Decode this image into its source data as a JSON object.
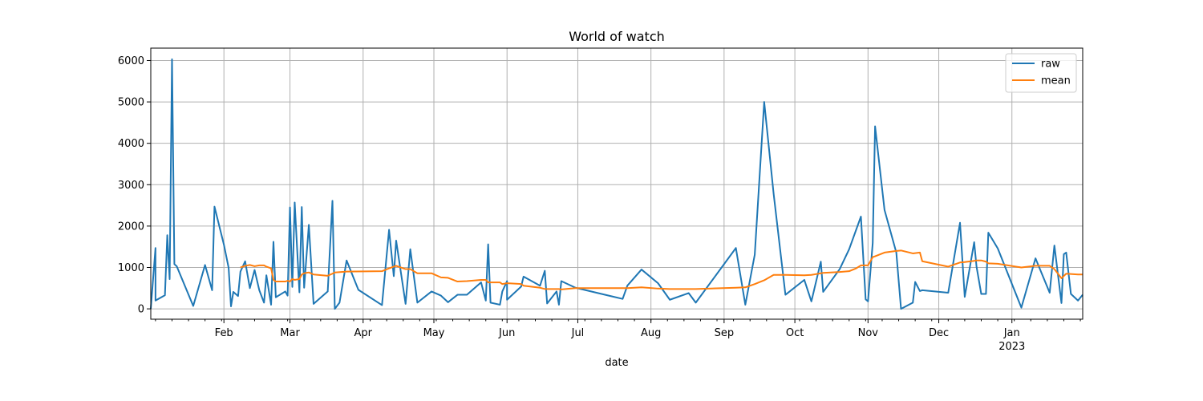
{
  "chart_data": {
    "type": "line",
    "title": "World of watch",
    "xlabel": "date",
    "ylabel": "",
    "x_type": "date",
    "xlim": [
      "2022-01-01",
      "2023-01-31"
    ],
    "ylim": [
      -250,
      6300
    ],
    "yticks": [
      0,
      1000,
      2000,
      3000,
      4000,
      5000,
      6000
    ],
    "xticks": [
      {
        "date": "2022-02-01",
        "label": "Feb",
        "sublabel": ""
      },
      {
        "date": "2022-03-01",
        "label": "Mar",
        "sublabel": ""
      },
      {
        "date": "2022-04-01",
        "label": "Apr",
        "sublabel": ""
      },
      {
        "date": "2022-05-01",
        "label": "May",
        "sublabel": ""
      },
      {
        "date": "2022-06-01",
        "label": "Jun",
        "sublabel": ""
      },
      {
        "date": "2022-07-01",
        "label": "Jul",
        "sublabel": ""
      },
      {
        "date": "2022-08-01",
        "label": "Aug",
        "sublabel": ""
      },
      {
        "date": "2022-09-01",
        "label": "Sep",
        "sublabel": ""
      },
      {
        "date": "2022-10-01",
        "label": "Oct",
        "sublabel": ""
      },
      {
        "date": "2022-11-01",
        "label": "Nov",
        "sublabel": ""
      },
      {
        "date": "2022-12-01",
        "label": "Dec",
        "sublabel": ""
      },
      {
        "date": "2023-01-01",
        "label": "Jan",
        "sublabel": "2023"
      }
    ],
    "grid": true,
    "legend_position": "top-right",
    "series": [
      {
        "name": "raw",
        "color": "#1f77b4",
        "points": [
          [
            "2022-01-01",
            0
          ],
          [
            "2022-01-03",
            1470
          ],
          [
            "2022-01-03",
            200
          ],
          [
            "2022-01-07",
            330
          ],
          [
            "2022-01-08",
            1780
          ],
          [
            "2022-01-09",
            720
          ],
          [
            "2022-01-10",
            6030
          ],
          [
            "2022-01-11",
            1080
          ],
          [
            "2022-01-12",
            1030
          ],
          [
            "2022-01-19",
            70
          ],
          [
            "2022-01-24",
            1060
          ],
          [
            "2022-01-27",
            450
          ],
          [
            "2022-01-28",
            2470
          ],
          [
            "2022-02-01",
            1550
          ],
          [
            "2022-02-03",
            990
          ],
          [
            "2022-02-04",
            60
          ],
          [
            "2022-02-05",
            410
          ],
          [
            "2022-02-07",
            310
          ],
          [
            "2022-02-08",
            900
          ],
          [
            "2022-02-10",
            1150
          ],
          [
            "2022-02-12",
            500
          ],
          [
            "2022-02-14",
            940
          ],
          [
            "2022-02-16",
            450
          ],
          [
            "2022-02-18",
            150
          ],
          [
            "2022-02-19",
            810
          ],
          [
            "2022-02-21",
            100
          ],
          [
            "2022-02-22",
            1620
          ],
          [
            "2022-02-23",
            280
          ],
          [
            "2022-02-27",
            420
          ],
          [
            "2022-02-28",
            320
          ],
          [
            "2022-03-01",
            2450
          ],
          [
            "2022-03-02",
            530
          ],
          [
            "2022-03-03",
            2570
          ],
          [
            "2022-03-05",
            400
          ],
          [
            "2022-03-06",
            2460
          ],
          [
            "2022-03-07",
            510
          ],
          [
            "2022-03-09",
            2030
          ],
          [
            "2022-03-11",
            120
          ],
          [
            "2022-03-17",
            420
          ],
          [
            "2022-03-19",
            2610
          ],
          [
            "2022-03-20",
            0
          ],
          [
            "2022-03-22",
            150
          ],
          [
            "2022-03-25",
            1170
          ],
          [
            "2022-03-30",
            460
          ],
          [
            "2022-04-09",
            90
          ],
          [
            "2022-04-12",
            1910
          ],
          [
            "2022-04-14",
            790
          ],
          [
            "2022-04-15",
            1650
          ],
          [
            "2022-04-19",
            120
          ],
          [
            "2022-04-21",
            1440
          ],
          [
            "2022-04-24",
            150
          ],
          [
            "2022-04-30",
            420
          ],
          [
            "2022-05-04",
            320
          ],
          [
            "2022-05-07",
            160
          ],
          [
            "2022-05-11",
            340
          ],
          [
            "2022-05-15",
            340
          ],
          [
            "2022-05-21",
            640
          ],
          [
            "2022-05-23",
            200
          ],
          [
            "2022-05-24",
            1560
          ],
          [
            "2022-05-25",
            150
          ],
          [
            "2022-05-29",
            100
          ],
          [
            "2022-05-30",
            420
          ],
          [
            "2022-06-01",
            670
          ],
          [
            "2022-06-01",
            220
          ],
          [
            "2022-06-07",
            540
          ],
          [
            "2022-06-08",
            780
          ],
          [
            "2022-06-15",
            560
          ],
          [
            "2022-06-17",
            920
          ],
          [
            "2022-06-18",
            130
          ],
          [
            "2022-06-22",
            420
          ],
          [
            "2022-06-23",
            100
          ],
          [
            "2022-06-24",
            670
          ],
          [
            "2022-06-30",
            510
          ],
          [
            "2022-07-20",
            240
          ],
          [
            "2022-07-22",
            560
          ],
          [
            "2022-07-28",
            950
          ],
          [
            "2022-08-04",
            620
          ],
          [
            "2022-08-09",
            220
          ],
          [
            "2022-08-17",
            380
          ],
          [
            "2022-08-20",
            150
          ],
          [
            "2022-09-06",
            1470
          ],
          [
            "2022-09-10",
            100
          ],
          [
            "2022-09-14",
            1310
          ],
          [
            "2022-09-18",
            5000
          ],
          [
            "2022-09-22",
            2780
          ],
          [
            "2022-09-27",
            340
          ],
          [
            "2022-10-05",
            700
          ],
          [
            "2022-10-08",
            180
          ],
          [
            "2022-10-12",
            1140
          ],
          [
            "2022-10-13",
            410
          ],
          [
            "2022-10-20",
            960
          ],
          [
            "2022-10-24",
            1440
          ],
          [
            "2022-10-29",
            2230
          ],
          [
            "2022-10-31",
            230
          ],
          [
            "2022-11-01",
            180
          ],
          [
            "2022-11-03",
            1590
          ],
          [
            "2022-11-04",
            4410
          ],
          [
            "2022-11-08",
            2390
          ],
          [
            "2022-11-13",
            1360
          ],
          [
            "2022-11-15",
            0
          ],
          [
            "2022-11-20",
            150
          ],
          [
            "2022-11-21",
            650
          ],
          [
            "2022-11-23",
            430
          ],
          [
            "2022-11-24",
            450
          ],
          [
            "2022-12-05",
            390
          ],
          [
            "2022-12-10",
            2080
          ],
          [
            "2022-12-12",
            290
          ],
          [
            "2022-12-16",
            1610
          ],
          [
            "2022-12-17",
            1020
          ],
          [
            "2022-12-19",
            360
          ],
          [
            "2022-12-21",
            360
          ],
          [
            "2022-12-22",
            1840
          ],
          [
            "2022-12-26",
            1460
          ],
          [
            "2023-01-05",
            30
          ],
          [
            "2023-01-11",
            1220
          ],
          [
            "2023-01-17",
            390
          ],
          [
            "2023-01-19",
            1530
          ],
          [
            "2023-01-22",
            140
          ],
          [
            "2023-01-23",
            1320
          ],
          [
            "2023-01-24",
            1360
          ],
          [
            "2023-01-26",
            360
          ],
          [
            "2023-01-29",
            200
          ],
          [
            "2023-01-31",
            340
          ]
        ]
      },
      {
        "name": "mean",
        "color": "#ff7f0e",
        "points": [
          [
            "2022-02-08",
            1000
          ],
          [
            "2022-02-10",
            1040
          ],
          [
            "2022-02-12",
            1060
          ],
          [
            "2022-02-14",
            1030
          ],
          [
            "2022-02-16",
            1050
          ],
          [
            "2022-02-18",
            1050
          ],
          [
            "2022-02-19",
            1020
          ],
          [
            "2022-02-21",
            980
          ],
          [
            "2022-02-22",
            700
          ],
          [
            "2022-02-23",
            660
          ],
          [
            "2022-02-27",
            660
          ],
          [
            "2022-02-28",
            680
          ],
          [
            "2022-03-01",
            660
          ],
          [
            "2022-03-02",
            720
          ],
          [
            "2022-03-03",
            700
          ],
          [
            "2022-03-05",
            720
          ],
          [
            "2022-03-06",
            830
          ],
          [
            "2022-03-07",
            860
          ],
          [
            "2022-03-09",
            880
          ],
          [
            "2022-03-11",
            830
          ],
          [
            "2022-03-17",
            800
          ],
          [
            "2022-03-19",
            850
          ],
          [
            "2022-03-20",
            880
          ],
          [
            "2022-03-25",
            900
          ],
          [
            "2022-04-09",
            910
          ],
          [
            "2022-04-12",
            980
          ],
          [
            "2022-04-15",
            1040
          ],
          [
            "2022-04-19",
            960
          ],
          [
            "2022-04-21",
            960
          ],
          [
            "2022-04-24",
            860
          ],
          [
            "2022-04-30",
            860
          ],
          [
            "2022-05-04",
            760
          ],
          [
            "2022-05-07",
            750
          ],
          [
            "2022-05-11",
            660
          ],
          [
            "2022-05-15",
            670
          ],
          [
            "2022-05-21",
            700
          ],
          [
            "2022-05-23",
            700
          ],
          [
            "2022-05-24",
            640
          ],
          [
            "2022-05-29",
            640
          ],
          [
            "2022-05-30",
            600
          ],
          [
            "2022-06-01",
            620
          ],
          [
            "2022-06-07",
            600
          ],
          [
            "2022-06-08",
            560
          ],
          [
            "2022-06-15",
            510
          ],
          [
            "2022-06-17",
            480
          ],
          [
            "2022-06-18",
            480
          ],
          [
            "2022-06-23",
            480
          ],
          [
            "2022-06-24",
            470
          ],
          [
            "2022-06-30",
            500
          ],
          [
            "2022-07-20",
            500
          ],
          [
            "2022-07-22",
            500
          ],
          [
            "2022-07-28",
            520
          ],
          [
            "2022-08-04",
            490
          ],
          [
            "2022-08-09",
            480
          ],
          [
            "2022-08-17",
            480
          ],
          [
            "2022-08-20",
            480
          ],
          [
            "2022-09-06",
            510
          ],
          [
            "2022-09-10",
            520
          ],
          [
            "2022-09-14",
            600
          ],
          [
            "2022-09-18",
            690
          ],
          [
            "2022-09-22",
            820
          ],
          [
            "2022-09-27",
            820
          ],
          [
            "2022-10-05",
            810
          ],
          [
            "2022-10-08",
            820
          ],
          [
            "2022-10-12",
            860
          ],
          [
            "2022-10-13",
            870
          ],
          [
            "2022-10-20",
            890
          ],
          [
            "2022-10-24",
            910
          ],
          [
            "2022-10-27",
            980
          ],
          [
            "2022-10-29",
            1050
          ],
          [
            "2022-11-01",
            1050
          ],
          [
            "2022-11-03",
            1250
          ],
          [
            "2022-11-04",
            1270
          ],
          [
            "2022-11-08",
            1360
          ],
          [
            "2022-11-13",
            1400
          ],
          [
            "2022-11-15",
            1410
          ],
          [
            "2022-11-20",
            1340
          ],
          [
            "2022-11-23",
            1360
          ],
          [
            "2022-11-24",
            1150
          ],
          [
            "2022-12-05",
            1020
          ],
          [
            "2022-12-10",
            1120
          ],
          [
            "2022-12-12",
            1130
          ],
          [
            "2022-12-16",
            1160
          ],
          [
            "2022-12-17",
            1170
          ],
          [
            "2022-12-19",
            1170
          ],
          [
            "2022-12-21",
            1140
          ],
          [
            "2022-12-22",
            1100
          ],
          [
            "2022-12-26",
            1090
          ],
          [
            "2023-01-05",
            1000
          ],
          [
            "2023-01-11",
            1040
          ],
          [
            "2023-01-17",
            1040
          ],
          [
            "2023-01-19",
            960
          ],
          [
            "2023-01-22",
            740
          ],
          [
            "2023-01-24",
            850
          ],
          [
            "2023-01-29",
            830
          ],
          [
            "2023-01-31",
            830
          ]
        ]
      }
    ]
  }
}
